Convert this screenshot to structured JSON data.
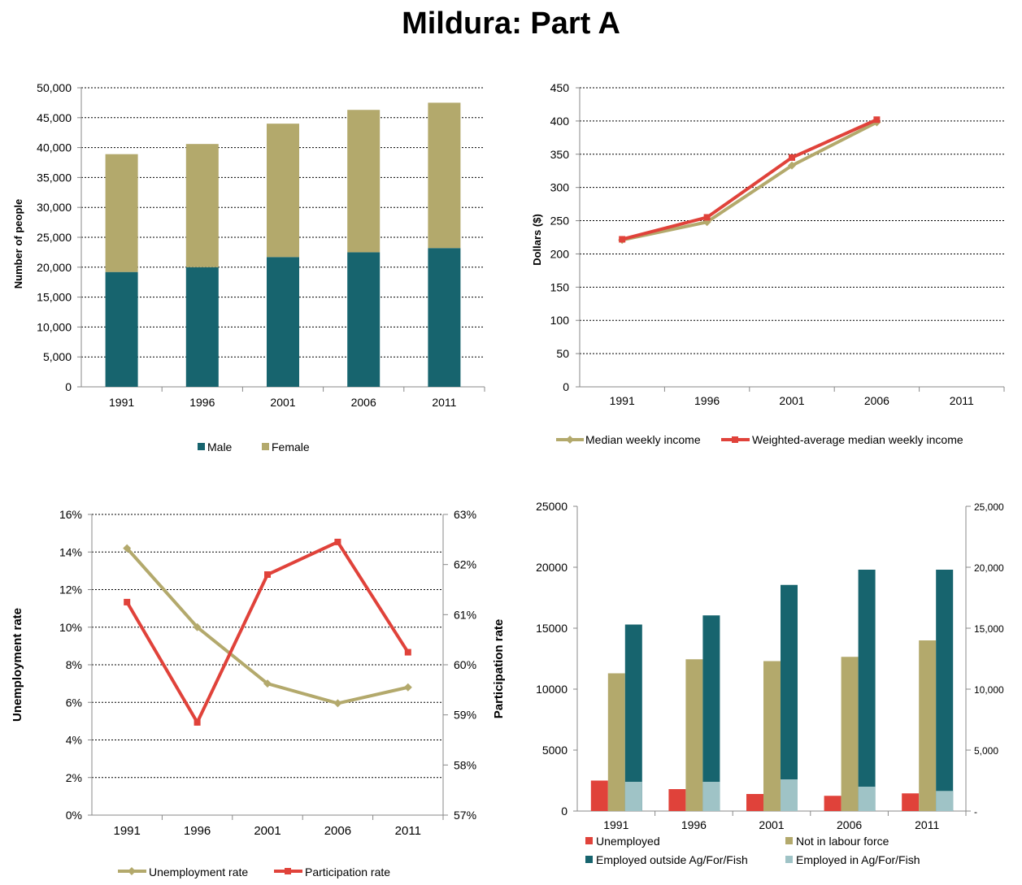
{
  "page_title": "Mildura: Part A",
  "chart_data": [
    {
      "type": "bar",
      "stacked": true,
      "categories": [
        "1991",
        "1996",
        "2001",
        "2006",
        "2011"
      ],
      "series": [
        {
          "name": "Male",
          "color": "#17646e",
          "values": [
            19200,
            20000,
            21700,
            22500,
            23200
          ]
        },
        {
          "name": "Female",
          "color": "#b3a96c",
          "values": [
            19700,
            20600,
            22300,
            23800,
            24300
          ]
        }
      ],
      "ylabel": "Number of people",
      "ylim": [
        0,
        50000
      ],
      "yticks": [
        "0",
        "5,000",
        "10,000",
        "15,000",
        "20,000",
        "25,000",
        "30,000",
        "35,000",
        "40,000",
        "45,000",
        "50,000"
      ],
      "grid": true,
      "legend_position": "bottom"
    },
    {
      "type": "line",
      "categories": [
        "1991",
        "1996",
        "2001",
        "2006",
        "2011"
      ],
      "series": [
        {
          "name": "Median weekly income",
          "color": "#b3a96c",
          "values": [
            221,
            248,
            333,
            398,
            null
          ]
        },
        {
          "name": "Weighted-average median weekly income",
          "color": "#e0423a",
          "values": [
            222,
            255,
            345,
            402,
            null
          ]
        }
      ],
      "ylabel": "Dollars ($)",
      "ylim": [
        0,
        450
      ],
      "yticks": [
        "0",
        "50",
        "100",
        "150",
        "200",
        "250",
        "300",
        "350",
        "400",
        "450"
      ],
      "grid": true,
      "legend_position": "bottom"
    },
    {
      "type": "line",
      "categories": [
        "1991",
        "1996",
        "2001",
        "2006",
        "2011"
      ],
      "series": [
        {
          "name": "Unemployment rate",
          "axis": "left",
          "color": "#b3a96c",
          "values": [
            14.2,
            10.0,
            7.0,
            5.95,
            6.8
          ]
        },
        {
          "name": "Participation rate",
          "axis": "right",
          "color": "#e0423a",
          "values": [
            61.25,
            58.85,
            61.8,
            62.45,
            60.25
          ]
        }
      ],
      "ylabel": "Unemployment rate",
      "ylim": [
        0,
        16
      ],
      "yticks": [
        "0%",
        "2%",
        "4%",
        "6%",
        "8%",
        "10%",
        "12%",
        "14%",
        "16%"
      ],
      "y2label": "Participation rate",
      "y2lim": [
        57,
        63
      ],
      "y2ticks": [
        "57%",
        "58%",
        "59%",
        "60%",
        "61%",
        "62%",
        "63%"
      ],
      "grid": true,
      "legend_position": "bottom"
    },
    {
      "type": "bar",
      "categories": [
        "1991",
        "1996",
        "2001",
        "2006",
        "2011"
      ],
      "series": [
        {
          "name": "Unemployed",
          "color": "#e0423a",
          "values": [
            2500,
            1800,
            1400,
            1250,
            1450
          ]
        },
        {
          "name": "Not in labour force",
          "color": "#b3a96c",
          "values": [
            11300,
            12450,
            12300,
            12650,
            14000
          ]
        },
        {
          "name": "Employed outside Ag/For/Fish",
          "color": "#17646e",
          "values": [
            15300,
            16050,
            18550,
            19800,
            19800
          ]
        },
        {
          "name": "Employed in Ag/For/Fish",
          "color": "#9fc3c6",
          "values": [
            2400,
            2400,
            2600,
            2000,
            1650
          ]
        }
      ],
      "overlap_note": "",
      "ylim": [
        0,
        25000
      ],
      "yticks": [
        "0",
        "5000",
        "10000",
        "15000",
        "20000",
        "25000"
      ],
      "y2ticks": [
        "-",
        "5,000",
        "10,000",
        "15,000",
        "20,000",
        "25,000"
      ],
      "grid": false,
      "legend_position": "bottom"
    }
  ]
}
